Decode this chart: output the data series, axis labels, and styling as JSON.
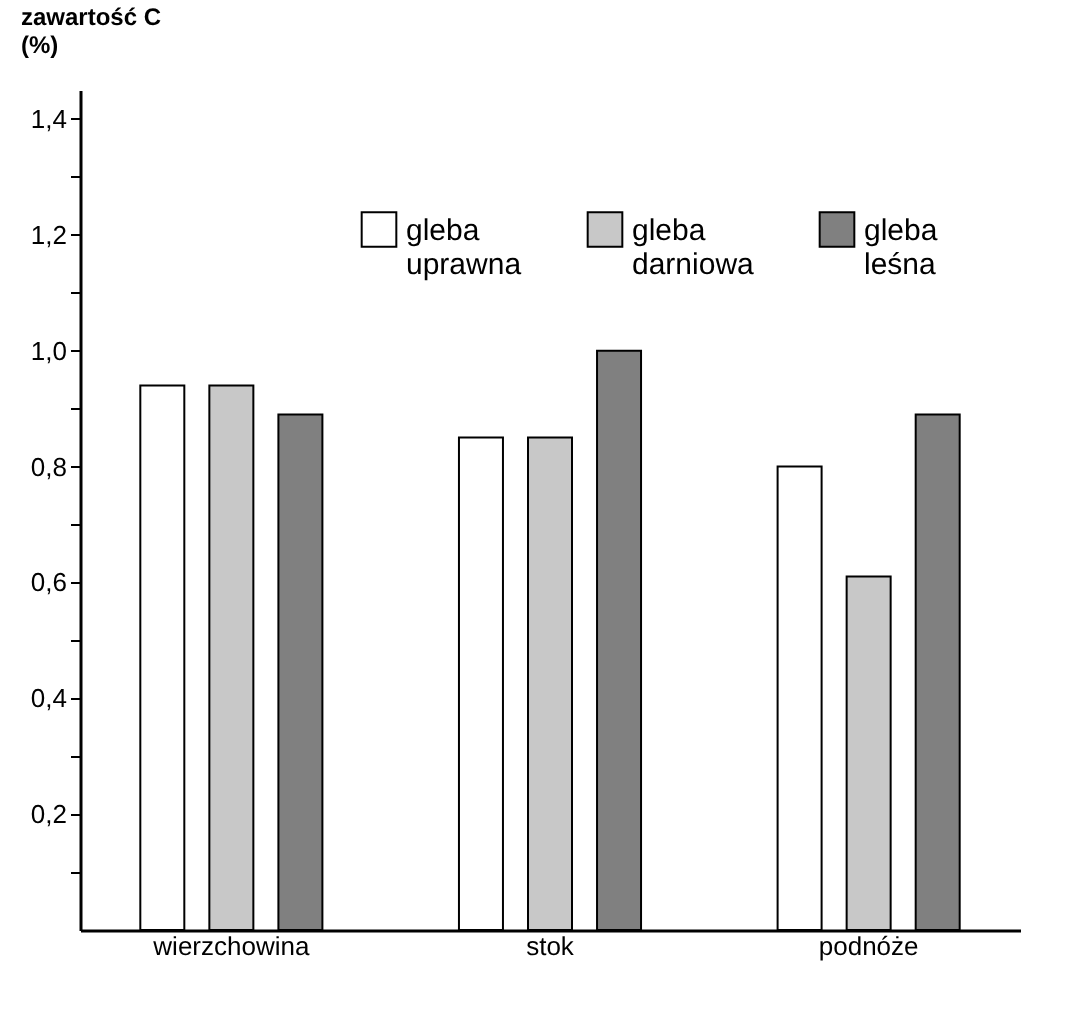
{
  "chart_data": {
    "type": "bar",
    "ylabel": "zawartość C (%)",
    "categories": [
      "wierzchowina",
      "stok",
      "podnóże"
    ],
    "series": [
      {
        "name": "gleba uprawna",
        "color": "#ffffff",
        "values": [
          0.94,
          0.85,
          0.8
        ]
      },
      {
        "name": "gleba darniowa",
        "color": "#c8c8c8",
        "values": [
          0.94,
          0.85,
          0.61
        ]
      },
      {
        "name": "gleba leśna",
        "color": "#808080",
        "values": [
          0.89,
          1.0,
          0.89
        ]
      }
    ],
    "ylim": [
      0,
      1.45
    ],
    "yticks": [
      {
        "value": 0.1,
        "label": null
      },
      {
        "value": 0.2,
        "label": "0,2"
      },
      {
        "value": 0.3,
        "label": null
      },
      {
        "value": 0.4,
        "label": "0,4"
      },
      {
        "value": 0.5,
        "label": null
      },
      {
        "value": 0.6,
        "label": "0,6"
      },
      {
        "value": 0.7,
        "label": null
      },
      {
        "value": 0.8,
        "label": "0,8"
      },
      {
        "value": 0.9,
        "label": null
      },
      {
        "value": 1.0,
        "label": "1,0"
      },
      {
        "value": 1.1,
        "label": null
      },
      {
        "value": 1.2,
        "label": "1,2"
      },
      {
        "value": 1.3,
        "label": null
      },
      {
        "value": 1.4,
        "label": "1,4"
      }
    ],
    "grid": false,
    "legend": "top"
  }
}
